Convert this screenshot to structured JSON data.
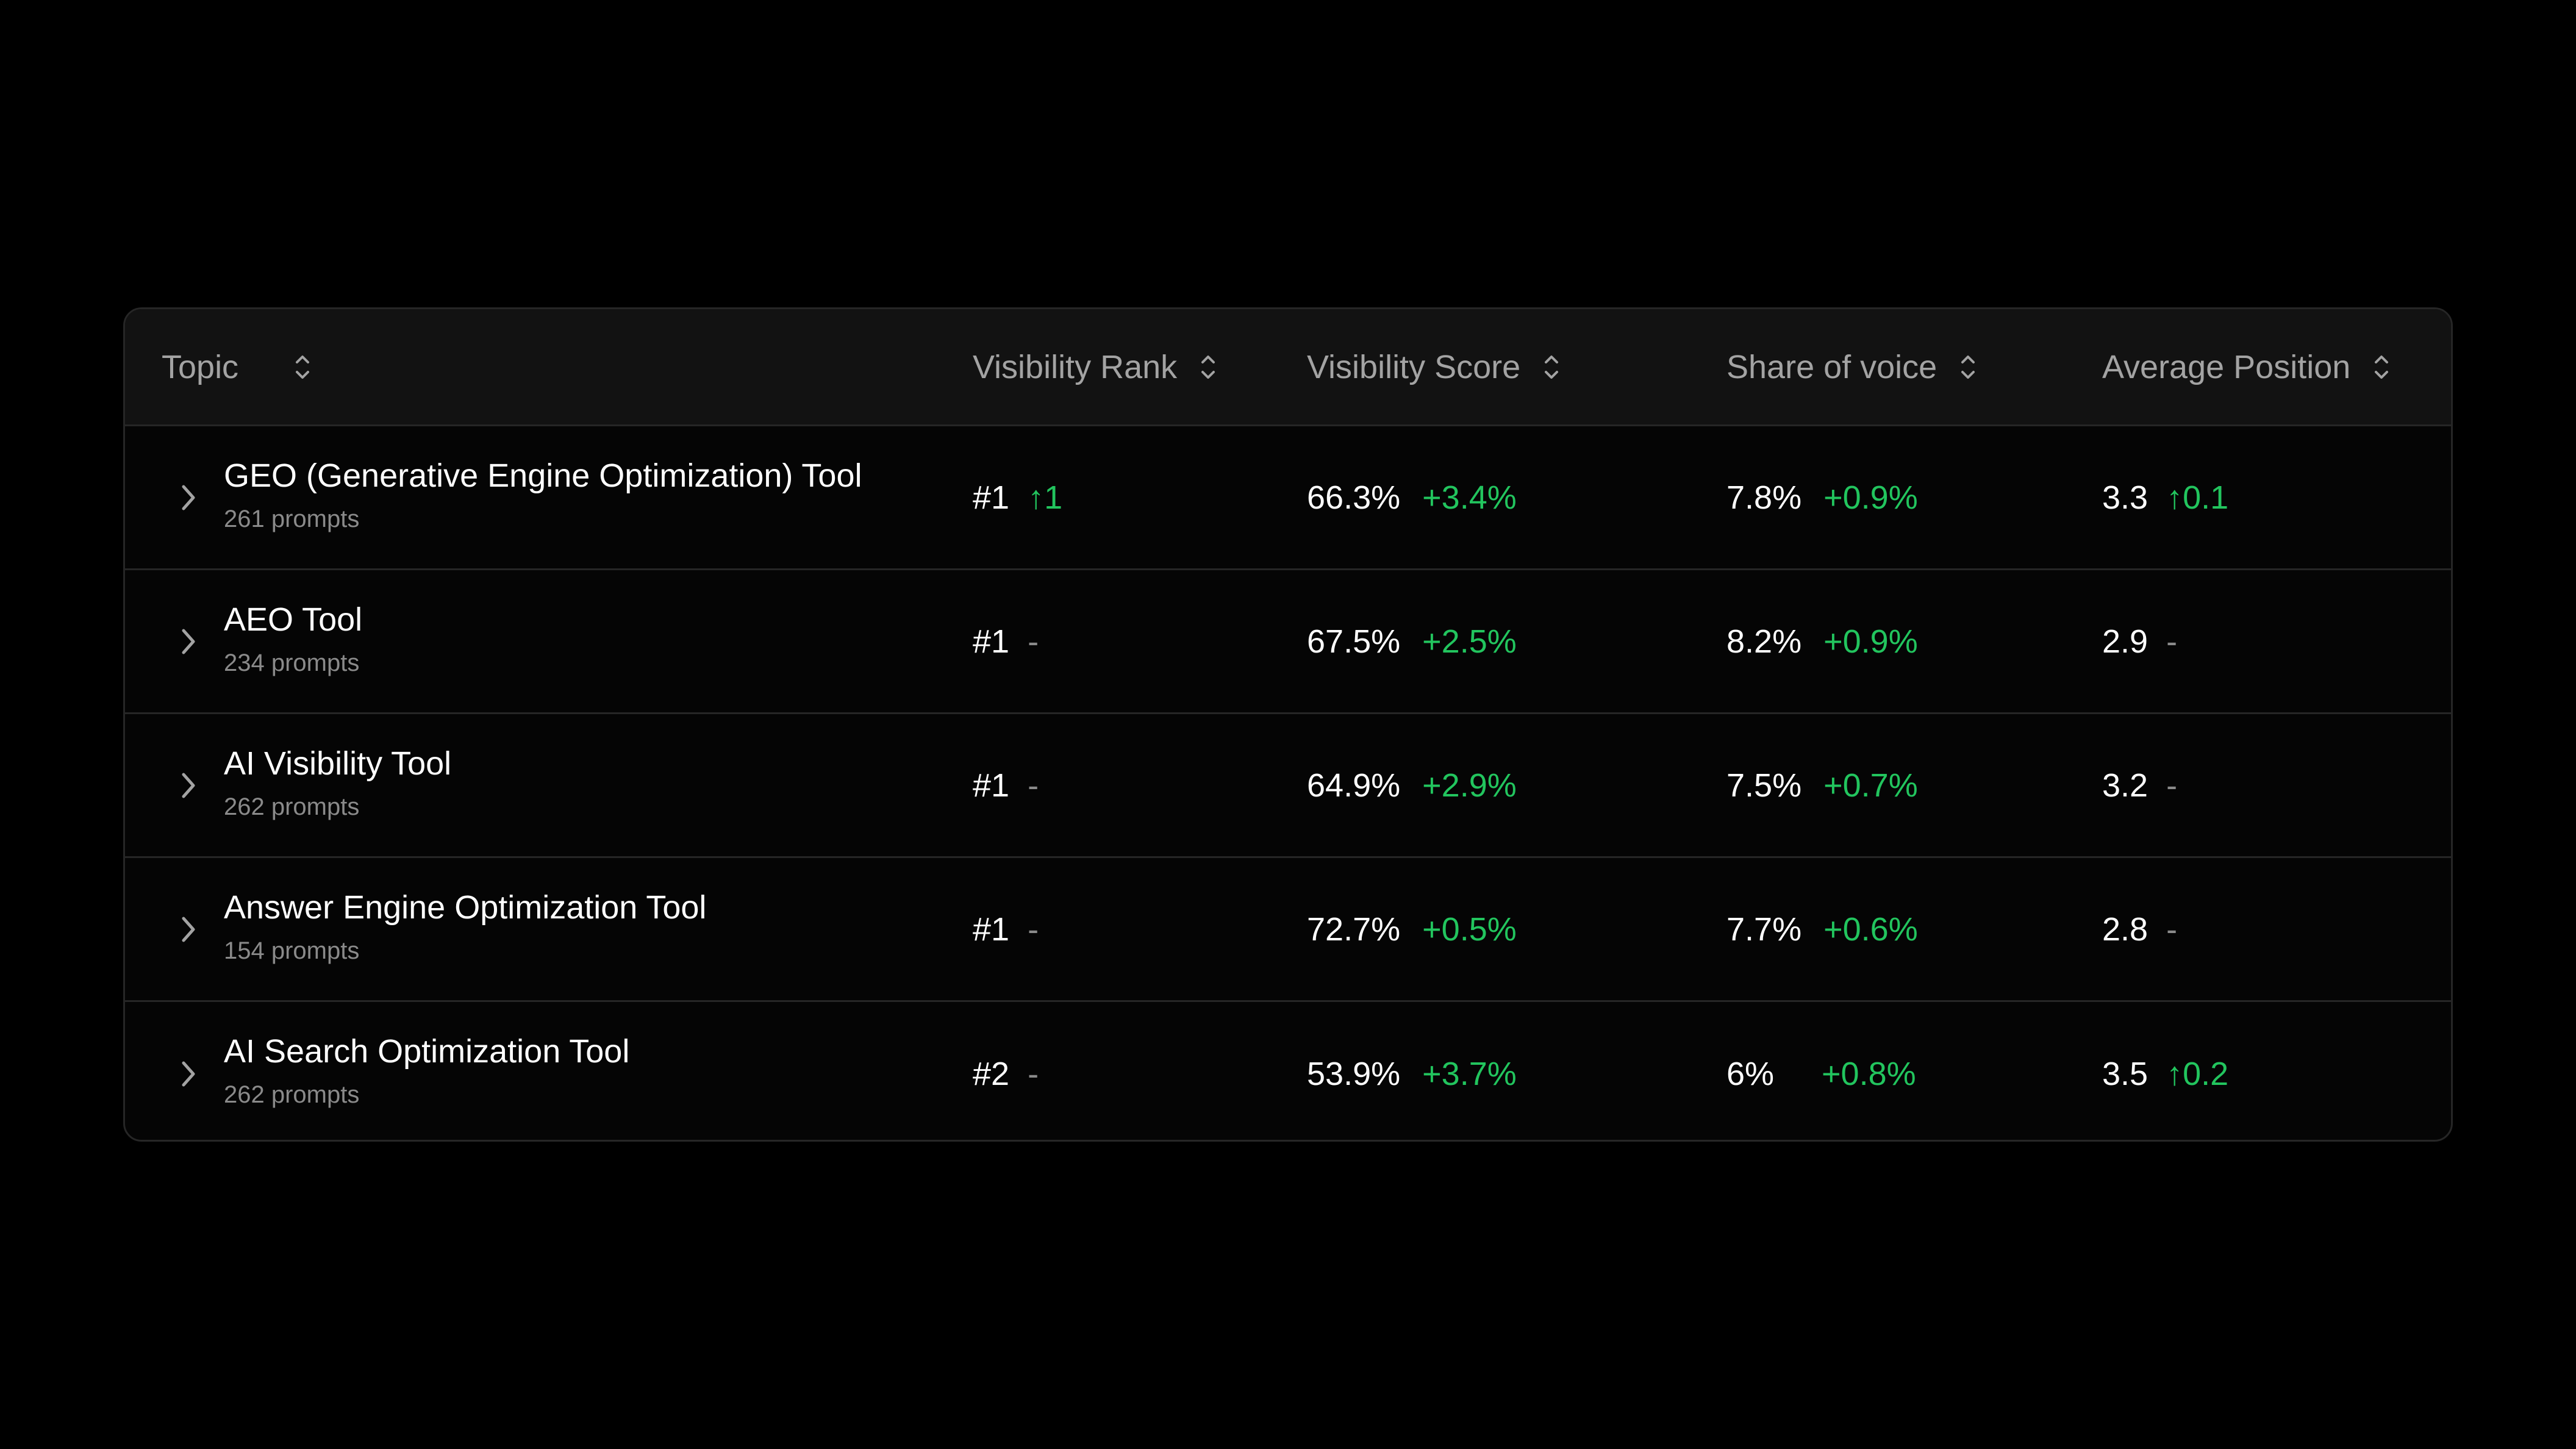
{
  "colors": {
    "background": "#000000",
    "card": "#050505",
    "header": "#121212",
    "border": "#262626",
    "text": "#ffffff",
    "muted": "#8a8a8a",
    "header_text": "#a3a3a3",
    "positive": "#22c55e"
  },
  "columns": {
    "topic": "Topic",
    "rank": "Visibility Rank",
    "score": "Visibility Score",
    "sov": "Share of voice",
    "position": "Average Position"
  },
  "icons": {
    "sort": "sort-updown-icon",
    "expand": "chevron-right-icon",
    "up": "arrow-up-icon"
  },
  "rows": [
    {
      "name": "GEO (Generative Engine Optimization) Tool",
      "prompts": "261 prompts",
      "rank": "#1",
      "rank_delta": "↑1",
      "score": "66.3%",
      "score_delta": "+3.4%",
      "sov": "7.8%",
      "sov_delta": "+0.9%",
      "position": "3.3",
      "position_delta": "↑0.1"
    },
    {
      "name": "AEO Tool",
      "prompts": "234 prompts",
      "rank": "#1",
      "rank_delta": "-",
      "score": "67.5%",
      "score_delta": "+2.5%",
      "sov": "8.2%",
      "sov_delta": "+0.9%",
      "position": "2.9",
      "position_delta": "-"
    },
    {
      "name": "AI Visibility Tool",
      "prompts": "262 prompts",
      "rank": "#1",
      "rank_delta": "-",
      "score": "64.9%",
      "score_delta": "+2.9%",
      "sov": "7.5%",
      "sov_delta": "+0.7%",
      "position": "3.2",
      "position_delta": "-"
    },
    {
      "name": "Answer Engine Optimization Tool",
      "prompts": "154 prompts",
      "rank": "#1",
      "rank_delta": "-",
      "score": "72.7%",
      "score_delta": "+0.5%",
      "sov": "7.7%",
      "sov_delta": "+0.6%",
      "position": "2.8",
      "position_delta": "-"
    },
    {
      "name": "AI Search Optimization Tool",
      "prompts": "262 prompts",
      "rank": "#2",
      "rank_delta": "-",
      "score": "53.9%",
      "score_delta": "+3.7%",
      "sov": "6%",
      "sov_delta": "+0.8%",
      "position": "3.5",
      "position_delta": "↑0.2"
    }
  ]
}
